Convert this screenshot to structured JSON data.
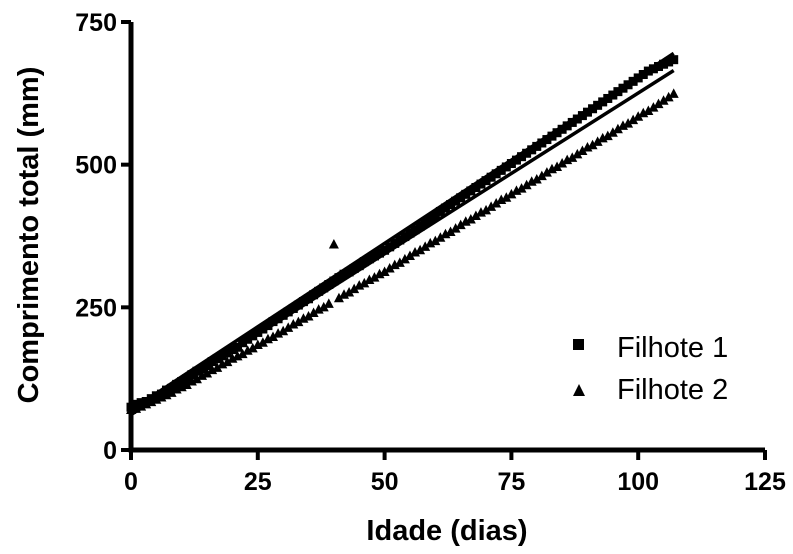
{
  "chart_data": {
    "type": "scatter",
    "title": "",
    "xlabel": "Idade (dias)",
    "ylabel": "Comprimento total (mm)",
    "xlim": [
      0,
      125
    ],
    "ylim": [
      0,
      750
    ],
    "xticks": [
      "0",
      "25",
      "50",
      "75",
      "100",
      "125"
    ],
    "yticks": [
      "0",
      "250",
      "500",
      "750"
    ],
    "grid": false,
    "legend_position": "bottom-right",
    "series": [
      {
        "name": "Filhote 1",
        "marker": "square",
        "color": "#000000",
        "x": [
          0,
          1,
          2,
          3,
          4,
          5,
          6,
          7,
          8,
          9,
          10,
          11,
          12,
          13,
          14,
          15,
          16,
          17,
          18,
          19,
          20,
          21,
          22,
          23,
          24,
          25,
          26,
          27,
          28,
          29,
          30,
          31,
          32,
          33,
          34,
          35,
          36,
          37,
          38,
          39,
          40,
          41,
          42,
          43,
          44,
          45,
          46,
          47,
          48,
          49,
          50,
          51,
          52,
          53,
          54,
          55,
          56,
          57,
          58,
          59,
          60,
          61,
          62,
          63,
          64,
          65,
          66,
          67,
          68,
          69,
          70,
          71,
          72,
          73,
          74,
          75,
          76,
          77,
          78,
          79,
          80,
          81,
          82,
          83,
          84,
          85,
          86,
          87,
          88,
          89,
          90,
          91,
          92,
          93,
          94,
          95,
          96,
          97,
          98,
          99,
          100,
          101,
          102,
          103,
          104,
          105,
          106,
          107
        ],
        "y": [
          75,
          80,
          83,
          85,
          90,
          95,
          98,
          105,
          108,
          115,
          120,
          125,
          132,
          138,
          142,
          148,
          155,
          160,
          165,
          170,
          176,
          180,
          188,
          194,
          200,
          206,
          212,
          218,
          225,
          230,
          236,
          242,
          248,
          254,
          260,
          265,
          272,
          278,
          284,
          290,
          296,
          302,
          308,
          312,
          318,
          323,
          330,
          335,
          340,
          345,
          350,
          356,
          362,
          368,
          374,
          380,
          386,
          392,
          398,
          404,
          410,
          418,
          424,
          430,
          436,
          442,
          448,
          454,
          460,
          466,
          472,
          478,
          484,
          490,
          496,
          502,
          508,
          514,
          520,
          526,
          532,
          538,
          544,
          550,
          556,
          562,
          568,
          574,
          580,
          586,
          592,
          598,
          604,
          610,
          616,
          622,
          628,
          634,
          640,
          646,
          652,
          658,
          664,
          668,
          672,
          676,
          680,
          684
        ]
      },
      {
        "name": "Filhote 2",
        "marker": "triangle",
        "color": "#000000",
        "x": [
          0,
          1,
          2,
          3,
          4,
          5,
          6,
          7,
          8,
          9,
          10,
          11,
          12,
          13,
          14,
          15,
          16,
          17,
          18,
          19,
          20,
          21,
          22,
          23,
          24,
          25,
          26,
          27,
          28,
          29,
          30,
          31,
          32,
          33,
          34,
          35,
          36,
          37,
          38,
          39,
          40,
          41,
          42,
          43,
          44,
          45,
          46,
          47,
          48,
          49,
          50,
          51,
          52,
          53,
          54,
          55,
          56,
          57,
          58,
          59,
          60,
          61,
          62,
          63,
          64,
          65,
          66,
          67,
          68,
          69,
          70,
          71,
          72,
          73,
          74,
          75,
          76,
          77,
          78,
          79,
          80,
          81,
          82,
          83,
          84,
          85,
          86,
          87,
          88,
          89,
          90,
          91,
          92,
          93,
          94,
          95,
          96,
          97,
          98,
          99,
          100,
          101,
          102,
          103,
          104,
          105,
          106,
          107
        ],
        "y": [
          70,
          72,
          76,
          80,
          84,
          88,
          92,
          96,
          100,
          106,
          110,
          114,
          120,
          124,
          130,
          134,
          140,
          144,
          150,
          154,
          160,
          164,
          168,
          174,
          178,
          184,
          188,
          194,
          198,
          204,
          208,
          214,
          220,
          224,
          230,
          234,
          240,
          246,
          250,
          256,
          360,
          266,
          272,
          276,
          282,
          288,
          292,
          298,
          302,
          308,
          312,
          318,
          324,
          328,
          334,
          340,
          346,
          350,
          356,
          362,
          366,
          372,
          378,
          382,
          388,
          394,
          400,
          404,
          410,
          416,
          420,
          426,
          432,
          438,
          442,
          448,
          454,
          458,
          464,
          470,
          474,
          480,
          486,
          492,
          496,
          502,
          508,
          512,
          518,
          524,
          530,
          534,
          540,
          546,
          550,
          556,
          562,
          568,
          572,
          578,
          584,
          590,
          594,
          600,
          606,
          612,
          618,
          624
        ]
      }
    ],
    "trendlines": [
      {
        "series": "Filhote 1",
        "x": [
          0,
          107
        ],
        "y": [
          70,
          695
        ]
      },
      {
        "series": "Filhote 2",
        "x": [
          0,
          107
        ],
        "y": [
          62,
          665
        ]
      }
    ]
  }
}
